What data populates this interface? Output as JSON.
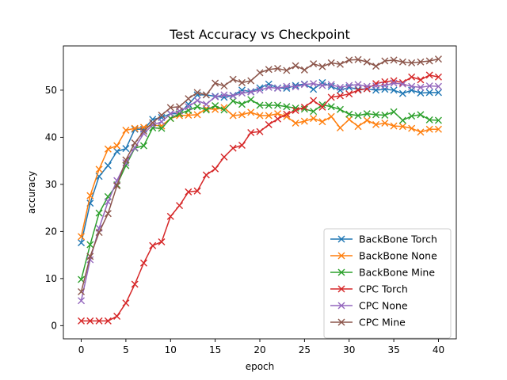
{
  "chart_data": {
    "type": "line",
    "title": "Test Accuracy vs Checkpoint",
    "xlabel": "epoch",
    "ylabel": "accuracy",
    "xlim": [
      -2,
      42
    ],
    "ylim": [
      -2.8,
      59.4
    ],
    "xticks": [
      0,
      5,
      10,
      15,
      20,
      25,
      30,
      35,
      40
    ],
    "yticks": [
      0,
      10,
      20,
      30,
      40,
      50
    ],
    "grid": false,
    "legend_position": "lower-right",
    "marker": "x",
    "x": [
      0,
      1,
      2,
      3,
      4,
      5,
      6,
      7,
      8,
      9,
      10,
      11,
      12,
      13,
      14,
      15,
      16,
      17,
      18,
      19,
      20,
      21,
      22,
      23,
      24,
      25,
      26,
      27,
      28,
      29,
      30,
      31,
      32,
      33,
      34,
      35,
      36,
      37,
      38,
      39,
      40
    ],
    "series": [
      {
        "name": "BackBone Torch",
        "color": "#1f77b4",
        "values": [
          17.6,
          26.0,
          31.7,
          34.0,
          37.0,
          37.6,
          41.7,
          41.7,
          43.8,
          44.2,
          45.0,
          45.0,
          47.0,
          49.0,
          49.0,
          48.7,
          48.5,
          48.9,
          50.0,
          49.7,
          50.5,
          51.3,
          50.5,
          50.4,
          51.0,
          51.3,
          50.2,
          51.6,
          50.8,
          50.0,
          50.6,
          50.2,
          50.3,
          50.0,
          50.2,
          50.0,
          49.3,
          50.0,
          49.4,
          49.5,
          49.5
        ]
      },
      {
        "name": "BackBone None",
        "color": "#ff7f0e",
        "values": [
          18.9,
          27.6,
          33.2,
          37.5,
          38.2,
          41.5,
          41.9,
          42.1,
          42.6,
          42.4,
          44.0,
          44.6,
          44.7,
          44.8,
          46.1,
          45.9,
          46.3,
          44.6,
          44.8,
          45.3,
          44.6,
          44.6,
          45.0,
          44.4,
          43.0,
          43.4,
          44.0,
          43.3,
          44.4,
          42.0,
          43.8,
          42.3,
          43.6,
          42.7,
          43.0,
          42.4,
          42.3,
          41.9,
          41.1,
          41.7,
          41.7
        ]
      },
      {
        "name": "BackBone Mine",
        "color": "#2ca02c",
        "values": [
          9.8,
          17.2,
          23.9,
          27.4,
          29.9,
          34.0,
          37.7,
          38.2,
          42.0,
          41.9,
          44.0,
          45.0,
          45.7,
          46.5,
          45.8,
          46.7,
          45.8,
          47.7,
          47.0,
          48.0,
          46.8,
          46.8,
          46.8,
          46.5,
          46.2,
          46.0,
          45.5,
          46.9,
          46.5,
          45.9,
          44.9,
          44.6,
          45.0,
          44.8,
          44.7,
          45.4,
          43.6,
          44.5,
          44.8,
          43.7,
          43.6
        ]
      },
      {
        "name": "CPC Torch",
        "color": "#d62728",
        "values": [
          1.0,
          1.0,
          1.0,
          1.0,
          2.0,
          4.8,
          8.8,
          13.3,
          17.0,
          17.8,
          23.2,
          25.5,
          28.4,
          28.6,
          32.0,
          33.3,
          35.8,
          37.7,
          38.3,
          41.0,
          41.2,
          42.7,
          43.9,
          44.9,
          45.7,
          46.4,
          47.8,
          46.4,
          48.5,
          48.8,
          49.2,
          50.0,
          50.3,
          51.4,
          51.8,
          52.0,
          51.6,
          52.8,
          52.2,
          53.2,
          52.8
        ]
      },
      {
        "name": "CPC None",
        "color": "#9467bd",
        "values": [
          5.3,
          14.0,
          20.7,
          26.3,
          30.8,
          34.6,
          37.8,
          40.8,
          42.6,
          43.3,
          45.0,
          45.6,
          46.5,
          47.8,
          47.0,
          48.6,
          49.0,
          48.8,
          49.4,
          49.6,
          50.0,
          50.6,
          50.4,
          50.8,
          50.7,
          51.2,
          51.4,
          51.0,
          51.2,
          50.6,
          51.0,
          51.2,
          50.8,
          50.9,
          51.0,
          51.5,
          51.3,
          50.8,
          50.6,
          50.9,
          50.8
        ]
      },
      {
        "name": "CPC Mine",
        "color": "#8c564b",
        "values": [
          7.2,
          14.7,
          19.8,
          23.8,
          29.7,
          35.2,
          38.8,
          41.3,
          43.1,
          44.7,
          46.3,
          46.5,
          48.2,
          49.5,
          49.0,
          51.5,
          50.9,
          52.3,
          51.6,
          52.0,
          53.7,
          54.4,
          54.6,
          54.2,
          55.2,
          54.3,
          55.6,
          55.0,
          55.8,
          55.5,
          56.4,
          56.5,
          56.0,
          55.1,
          56.2,
          56.4,
          56.0,
          55.8,
          56.0,
          56.2,
          56.6
        ]
      }
    ]
  }
}
